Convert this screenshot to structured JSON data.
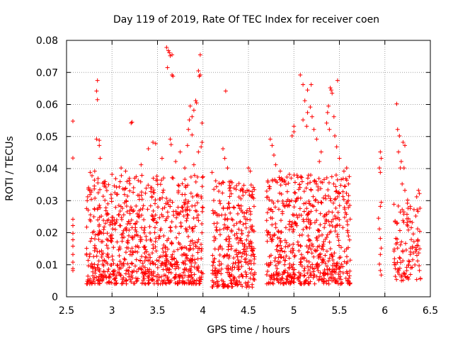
{
  "chart_data": {
    "type": "scatter",
    "title": "Day 119 of 2019, Rate Of TEC Index for receiver coen",
    "xlabel": "GPS time / hours",
    "ylabel": "ROTI / TECUs",
    "xlim": [
      2.5,
      6.5
    ],
    "ylim": [
      0,
      0.08
    ],
    "x_ticks": [
      {
        "value": 2.5,
        "label": "2.5"
      },
      {
        "value": 3,
        "label": "3"
      },
      {
        "value": 3.5,
        "label": "3.5"
      },
      {
        "value": 4,
        "label": "4"
      },
      {
        "value": 4.5,
        "label": "4.5"
      },
      {
        "value": 5,
        "label": "5"
      },
      {
        "value": 5.5,
        "label": "5.5"
      },
      {
        "value": 6,
        "label": "6"
      },
      {
        "value": 6.5,
        "label": "6.5"
      }
    ],
    "y_ticks": [
      {
        "value": 0,
        "label": "0"
      },
      {
        "value": 0.01,
        "label": "0.01"
      },
      {
        "value": 0.02,
        "label": "0.02"
      },
      {
        "value": 0.03,
        "label": "0.03"
      },
      {
        "value": 0.04,
        "label": "0.04"
      },
      {
        "value": 0.05,
        "label": "0.05"
      },
      {
        "value": 0.06,
        "label": "0.06"
      },
      {
        "value": 0.07,
        "label": "0.07"
      },
      {
        "value": 0.08,
        "label": "0.08"
      }
    ],
    "grid": true,
    "marker": "+",
    "marker_color": "#ff0000",
    "series": [
      {
        "name": "ROTI",
        "points": [
          [
            2.57,
            0.0548
          ],
          [
            2.57,
            0.0433
          ],
          [
            2.57,
            0.0242
          ],
          [
            2.57,
            0.0222
          ],
          [
            2.57,
            0.0198
          ],
          [
            2.57,
            0.0178
          ],
          [
            2.57,
            0.0158
          ],
          [
            2.57,
            0.0132
          ],
          [
            2.57,
            0.0108
          ],
          [
            2.57,
            0.0088
          ],
          [
            2.57,
            0.0082
          ],
          [
            2.84,
            0.0675
          ],
          [
            2.83,
            0.0642
          ],
          [
            2.84,
            0.0615
          ],
          [
            2.83,
            0.0492
          ],
          [
            2.86,
            0.0488
          ],
          [
            2.86,
            0.0472
          ],
          [
            2.87,
            0.0432
          ],
          [
            2.76,
            0.0388
          ],
          [
            2.78,
            0.0378
          ],
          [
            2.74,
            0.0336
          ],
          [
            2.77,
            0.0332
          ],
          [
            2.81,
            0.0392
          ],
          [
            2.92,
            0.0352
          ],
          [
            3.22,
            0.0545
          ],
          [
            3.21,
            0.0542
          ],
          [
            3.32,
            0.0412
          ],
          [
            3.4,
            0.0462
          ],
          [
            3.45,
            0.0482
          ],
          [
            3.48,
            0.0478
          ],
          [
            3.55,
            0.0432
          ],
          [
            3.1,
            0.0402
          ],
          [
            3.15,
            0.0392
          ],
          [
            3.0,
            0.0382
          ],
          [
            3.05,
            0.0342
          ],
          [
            3.6,
            0.0778
          ],
          [
            3.62,
            0.0768
          ],
          [
            3.63,
            0.0762
          ],
          [
            3.64,
            0.0752
          ],
          [
            3.66,
            0.0755
          ],
          [
            3.61,
            0.0715
          ],
          [
            3.66,
            0.0692
          ],
          [
            3.67,
            0.0688
          ],
          [
            3.65,
            0.0475
          ],
          [
            3.64,
            0.0492
          ],
          [
            3.7,
            0.0422
          ],
          [
            3.75,
            0.0452
          ],
          [
            3.97,
            0.0755
          ],
          [
            3.95,
            0.0705
          ],
          [
            3.96,
            0.0688
          ],
          [
            3.97,
            0.0692
          ],
          [
            3.92,
            0.0612
          ],
          [
            3.93,
            0.0605
          ],
          [
            3.9,
            0.0582
          ],
          [
            3.86,
            0.0595
          ],
          [
            3.88,
            0.0562
          ],
          [
            3.85,
            0.0552
          ],
          [
            3.84,
            0.0522
          ],
          [
            3.88,
            0.0505
          ],
          [
            3.99,
            0.0542
          ],
          [
            3.99,
            0.0482
          ],
          [
            3.98,
            0.0468
          ],
          [
            3.95,
            0.0452
          ],
          [
            3.83,
            0.0472
          ],
          [
            3.9,
            0.0412
          ],
          [
            3.8,
            0.0402
          ],
          [
            4.25,
            0.0642
          ],
          [
            4.22,
            0.0462
          ],
          [
            4.24,
            0.0432
          ],
          [
            4.27,
            0.0402
          ],
          [
            4.1,
            0.0388
          ],
          [
            4.14,
            0.0362
          ],
          [
            4.2,
            0.0352
          ],
          [
            4.3,
            0.0342
          ],
          [
            4.45,
            0.0348
          ],
          [
            4.5,
            0.0402
          ],
          [
            4.52,
            0.0392
          ],
          [
            4.41,
            0.0332
          ],
          [
            4.74,
            0.0492
          ],
          [
            4.76,
            0.0472
          ],
          [
            4.78,
            0.0442
          ],
          [
            4.8,
            0.0412
          ],
          [
            4.85,
            0.0392
          ],
          [
            4.9,
            0.0362
          ],
          [
            4.95,
            0.0382
          ],
          [
            4.98,
            0.0502
          ],
          [
            5.0,
            0.0532
          ],
          [
            5.0,
            0.0515
          ],
          [
            5.07,
            0.0692
          ],
          [
            5.1,
            0.0662
          ],
          [
            5.15,
            0.0645
          ],
          [
            5.19,
            0.0662
          ],
          [
            5.12,
            0.0612
          ],
          [
            5.18,
            0.0592
          ],
          [
            5.15,
            0.0575
          ],
          [
            5.2,
            0.0562
          ],
          [
            5.1,
            0.0552
          ],
          [
            5.14,
            0.0532
          ],
          [
            5.22,
            0.0522
          ],
          [
            5.25,
            0.0492
          ],
          [
            5.4,
            0.0652
          ],
          [
            5.41,
            0.0645
          ],
          [
            5.42,
            0.0635
          ],
          [
            5.48,
            0.0675
          ],
          [
            5.38,
            0.0595
          ],
          [
            5.37,
            0.0575
          ],
          [
            5.44,
            0.0562
          ],
          [
            5.36,
            0.0542
          ],
          [
            5.39,
            0.0522
          ],
          [
            5.45,
            0.0502
          ],
          [
            5.47,
            0.0468
          ],
          [
            5.5,
            0.0432
          ],
          [
            5.55,
            0.0392
          ],
          [
            5.58,
            0.0402
          ],
          [
            5.6,
            0.0352
          ],
          [
            5.3,
            0.0452
          ],
          [
            5.28,
            0.0422
          ],
          [
            5.95,
            0.0452
          ],
          [
            5.96,
            0.0432
          ],
          [
            5.94,
            0.0402
          ],
          [
            5.95,
            0.0388
          ],
          [
            5.96,
            0.0295
          ],
          [
            5.95,
            0.0282
          ],
          [
            5.93,
            0.0245
          ],
          [
            5.94,
            0.0212
          ],
          [
            5.95,
            0.0182
          ],
          [
            5.96,
            0.0152
          ],
          [
            5.95,
            0.0132
          ],
          [
            5.94,
            0.0102
          ],
          [
            5.95,
            0.0082
          ],
          [
            5.96,
            0.0068
          ],
          [
            6.13,
            0.0602
          ],
          [
            6.14,
            0.0522
          ],
          [
            6.16,
            0.0502
          ],
          [
            6.2,
            0.0482
          ],
          [
            6.22,
            0.0472
          ],
          [
            6.15,
            0.0452
          ],
          [
            6.18,
            0.0422
          ],
          [
            6.17,
            0.0402
          ],
          [
            6.21,
            0.0402
          ],
          [
            6.19,
            0.0352
          ],
          [
            6.22,
            0.0332
          ],
          [
            6.25,
            0.0302
          ],
          [
            6.28,
            0.0282
          ],
          [
            6.32,
            0.0272
          ],
          [
            6.35,
            0.0312
          ],
          [
            6.37,
            0.0332
          ],
          [
            6.38,
            0.0322
          ],
          [
            6.34,
            0.0252
          ],
          [
            6.3,
            0.0232
          ],
          [
            6.36,
            0.0212
          ],
          [
            6.12,
            0.0182
          ],
          [
            6.14,
            0.0152
          ],
          [
            6.16,
            0.0122
          ],
          [
            6.12,
            0.0102
          ],
          [
            6.15,
            0.0082
          ],
          [
            6.18,
            0.0062
          ],
          [
            6.2,
            0.0052
          ],
          [
            6.22,
            0.0072
          ],
          [
            6.24,
            0.0092
          ],
          [
            6.26,
            0.0112
          ],
          [
            6.28,
            0.0132
          ],
          [
            6.3,
            0.0152
          ],
          [
            6.32,
            0.0172
          ],
          [
            6.34,
            0.0142
          ],
          [
            6.36,
            0.0112
          ],
          [
            6.38,
            0.0082
          ],
          [
            6.25,
            0.0062
          ],
          [
            6.3,
            0.0092
          ]
        ],
        "dense_regions": [
          {
            "x_min": 2.72,
            "x_max": 4.0,
            "y_min": 0.004,
            "y_max": 0.038,
            "points": 850,
            "seed": 11
          },
          {
            "x_min": 4.1,
            "x_max": 4.57,
            "y_min": 0.003,
            "y_max": 0.036,
            "points": 330,
            "seed": 23
          },
          {
            "x_min": 4.7,
            "x_max": 5.62,
            "y_min": 0.004,
            "y_max": 0.038,
            "points": 620,
            "seed": 37
          },
          {
            "x_min": 6.1,
            "x_max": 6.4,
            "y_min": 0.005,
            "y_max": 0.03,
            "points": 90,
            "seed": 53
          }
        ]
      }
    ]
  }
}
